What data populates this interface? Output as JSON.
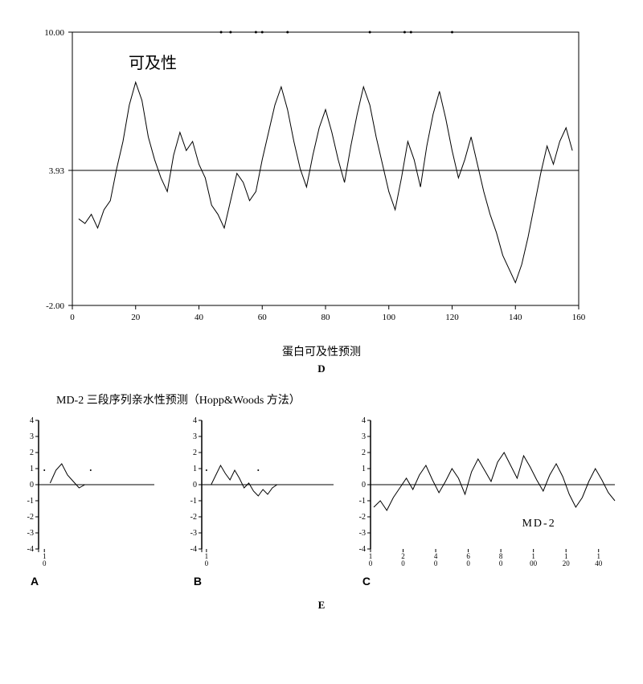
{
  "mainChart": {
    "type": "line",
    "title_inside": "可及性",
    "title_inside_xy": [
      140,
      65
    ],
    "caption": "蛋白可及性预测",
    "panel_label": "D",
    "xlim": [
      0,
      160
    ],
    "ylim": [
      -2.0,
      10.0
    ],
    "reference_y": 3.93,
    "xtick_labels": [
      "0",
      "20",
      "40",
      "60",
      "80",
      "100",
      "120",
      "140",
      "160"
    ],
    "xtick_vals": [
      0,
      20,
      40,
      60,
      80,
      100,
      120,
      140,
      160
    ],
    "ytick_labels": [
      "-2.00",
      "3.93",
      "10.00"
    ],
    "ytick_vals": [
      -2.0,
      3.93,
      10.0
    ],
    "line_color": "#000000",
    "line_width": 1,
    "axis_color": "#000000",
    "background_color": "#ffffff",
    "tick_fontsize": 11,
    "top_markers_x": [
      47,
      50,
      58,
      60,
      68,
      94,
      105,
      107,
      120
    ],
    "series_x": [
      2,
      4,
      6,
      8,
      10,
      12,
      14,
      16,
      18,
      20,
      22,
      24,
      26,
      28,
      30,
      32,
      34,
      36,
      38,
      40,
      42,
      44,
      46,
      48,
      50,
      52,
      54,
      56,
      58,
      60,
      62,
      64,
      66,
      68,
      70,
      72,
      74,
      76,
      78,
      80,
      82,
      84,
      86,
      88,
      90,
      92,
      94,
      96,
      98,
      100,
      102,
      104,
      106,
      108,
      110,
      112,
      114,
      116,
      118,
      120,
      122,
      124,
      126,
      128,
      130,
      132,
      134,
      136,
      138,
      140,
      142,
      144,
      146,
      148,
      150,
      152,
      154,
      156,
      158
    ],
    "series_y": [
      1.8,
      1.6,
      2.0,
      1.4,
      2.2,
      2.6,
      4.0,
      5.2,
      6.8,
      7.8,
      7.0,
      5.4,
      4.4,
      3.6,
      3.0,
      4.6,
      5.6,
      4.8,
      5.2,
      4.2,
      3.6,
      2.4,
      2.0,
      1.4,
      2.6,
      3.8,
      3.4,
      2.6,
      3.0,
      4.4,
      5.6,
      6.8,
      7.6,
      6.6,
      5.2,
      4.0,
      3.2,
      4.6,
      5.8,
      6.6,
      5.6,
      4.4,
      3.4,
      5.0,
      6.4,
      7.6,
      6.8,
      5.4,
      4.2,
      3.0,
      2.2,
      3.6,
      5.2,
      4.4,
      3.2,
      5.0,
      6.4,
      7.4,
      6.2,
      4.8,
      3.6,
      4.4,
      5.4,
      4.2,
      3.0,
      2.0,
      1.2,
      0.2,
      -0.4,
      -1.0,
      -0.2,
      1.0,
      2.4,
      3.8,
      5.0,
      4.2,
      5.2,
      5.8,
      4.8
    ]
  },
  "sectionE": {
    "title": "MD-2 三段序列亲水性预测（Hopp&Woods 方法）",
    "panel_label": "E",
    "ylim": [
      -4,
      4
    ],
    "yticks": [
      -4,
      -3,
      -2,
      -1,
      0,
      1,
      2,
      3,
      4
    ],
    "axis_color": "#000000",
    "line_color": "#000000",
    "line_width": 1,
    "label_fontsize": 10,
    "charts": [
      {
        "id": "A",
        "xlim": [
          0,
          20
        ],
        "zero_line_to": 20,
        "series_x": [
          2,
          3,
          4,
          5,
          6,
          7,
          8
        ],
        "series_y": [
          0.1,
          0.9,
          1.3,
          0.6,
          0.2,
          -0.2,
          0.0
        ],
        "dots_x": [
          1,
          9
        ],
        "x_ticks": [
          1
        ],
        "x_tick_labels": [
          "1\n0"
        ]
      },
      {
        "id": "B",
        "xlim": [
          0,
          28
        ],
        "zero_line_to": 28,
        "series_x": [
          2,
          3,
          4,
          5,
          6,
          7,
          8,
          9,
          10,
          11,
          12,
          13,
          14,
          15,
          16
        ],
        "series_y": [
          0.0,
          0.6,
          1.2,
          0.7,
          0.3,
          0.9,
          0.4,
          -0.2,
          0.1,
          -0.4,
          -0.7,
          -0.3,
          -0.6,
          -0.2,
          0.0
        ],
        "dots_x": [
          1,
          12
        ],
        "x_ticks": [
          1
        ],
        "x_tick_labels": [
          "1\n0"
        ]
      },
      {
        "id": "C",
        "label_inside": "MD-2",
        "xlim": [
          0,
          150
        ],
        "zero_line_to": 150,
        "x_ticks": [
          0,
          20,
          40,
          60,
          80,
          100,
          120,
          140
        ],
        "x_tick_labels": [
          "1\n0",
          "2\n0",
          "4\n0",
          "6\n0",
          "8\n0",
          "1\n00",
          "1\n20",
          "1\n40"
        ],
        "series_x": [
          2,
          6,
          10,
          14,
          18,
          22,
          26,
          30,
          34,
          38,
          42,
          46,
          50,
          54,
          58,
          62,
          66,
          70,
          74,
          78,
          82,
          86,
          90,
          94,
          98,
          102,
          106,
          110,
          114,
          118,
          122,
          126,
          130,
          134,
          138,
          142,
          146,
          150
        ],
        "series_y": [
          -1.4,
          -1.0,
          -1.6,
          -0.8,
          -0.2,
          0.4,
          -0.3,
          0.6,
          1.2,
          0.3,
          -0.5,
          0.2,
          1.0,
          0.4,
          -0.6,
          0.8,
          1.6,
          0.9,
          0.2,
          1.4,
          2.0,
          1.2,
          0.4,
          1.8,
          1.1,
          0.3,
          -0.4,
          0.6,
          1.3,
          0.5,
          -0.6,
          -1.4,
          -0.8,
          0.2,
          1.0,
          0.3,
          -0.5,
          -1.0
        ]
      }
    ]
  }
}
